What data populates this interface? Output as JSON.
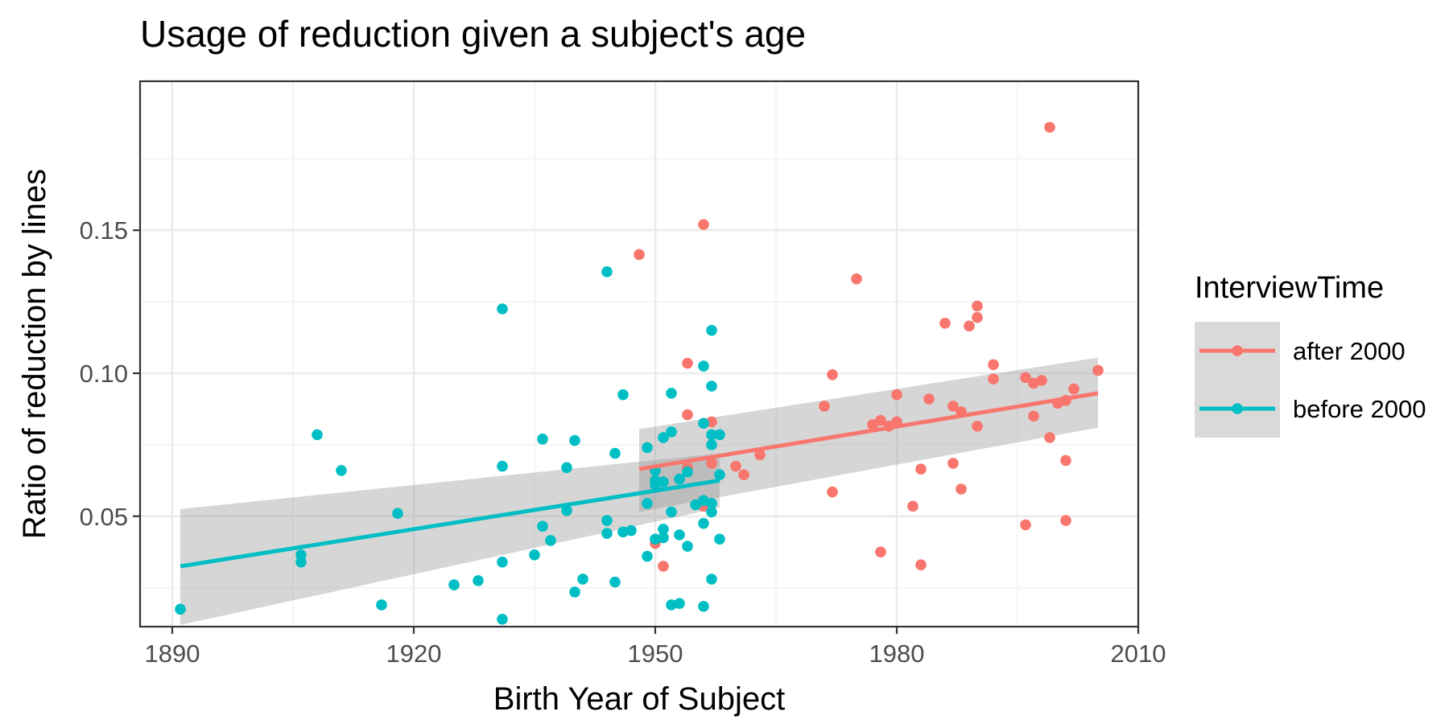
{
  "chart_data": {
    "type": "scatter",
    "title": "Usage of reduction given a subject's age",
    "xlabel": "Birth Year of Subject",
    "ylabel": "Ratio of reduction by lines",
    "xlim": [
      1886,
      2010
    ],
    "ylim": [
      0.0114,
      0.2021
    ],
    "xticks": [
      1890,
      1920,
      1950,
      1980,
      2010
    ],
    "xtick_labels": [
      "1890",
      "1920",
      "1950",
      "1980",
      "2010"
    ],
    "yticks": [
      0.05,
      0.1,
      0.15
    ],
    "ytick_labels": [
      "0.05",
      "0.10",
      "0.15"
    ],
    "grid": true,
    "legend": {
      "title": "InterviewTime",
      "position": "right",
      "entries": [
        "after 2000",
        "before 2000"
      ]
    },
    "series": [
      {
        "name": "after 2000",
        "color": "#F8766D",
        "points": [
          [
            1948,
            0.1415
          ],
          [
            1956,
            0.152
          ],
          [
            1954,
            0.1035
          ],
          [
            1954,
            0.0855
          ],
          [
            1957,
            0.083
          ],
          [
            1954,
            0.067
          ],
          [
            1957,
            0.0685
          ],
          [
            1956,
            0.0535
          ],
          [
            1950,
            0.0405
          ],
          [
            1951,
            0.0325
          ],
          [
            1960,
            0.0675
          ],
          [
            1961,
            0.0645
          ],
          [
            1963,
            0.0715
          ],
          [
            1971,
            0.0885
          ],
          [
            1972,
            0.0995
          ],
          [
            1972,
            0.0585
          ],
          [
            1975,
            0.133
          ],
          [
            1977,
            0.082
          ],
          [
            1978,
            0.0835
          ],
          [
            1978,
            0.0375
          ],
          [
            1979,
            0.0815
          ],
          [
            1980,
            0.0925
          ],
          [
            1980,
            0.083
          ],
          [
            1982,
            0.0535
          ],
          [
            1983,
            0.0665
          ],
          [
            1983,
            0.033
          ],
          [
            1984,
            0.091
          ],
          [
            1986,
            0.1175
          ],
          [
            1987,
            0.0885
          ],
          [
            1987,
            0.0685
          ],
          [
            1988,
            0.0865
          ],
          [
            1988,
            0.0595
          ],
          [
            1989,
            0.1165
          ],
          [
            1990,
            0.1235
          ],
          [
            1990,
            0.1195
          ],
          [
            1990,
            0.0815
          ],
          [
            1992,
            0.103
          ],
          [
            1992,
            0.098
          ],
          [
            1996,
            0.0985
          ],
          [
            1996,
            0.047
          ],
          [
            1997,
            0.0965
          ],
          [
            1997,
            0.085
          ],
          [
            1998,
            0.0975
          ],
          [
            1999,
            0.186
          ],
          [
            1999,
            0.0775
          ],
          [
            2000,
            0.0895
          ],
          [
            2001,
            0.0695
          ],
          [
            2001,
            0.0485
          ],
          [
            2001,
            0.0905
          ],
          [
            2002,
            0.0945
          ],
          [
            2005,
            0.101
          ]
        ],
        "trend": {
          "x": [
            1948,
            2005
          ],
          "y": [
            0.0665,
            0.093
          ],
          "ci_low": [
            0.0515,
            0.081
          ],
          "ci_high": [
            0.0805,
            0.1055
          ]
        }
      },
      {
        "name": "before 2000",
        "color": "#00BFC4",
        "points": [
          [
            1891,
            0.0175
          ],
          [
            1906,
            0.0365
          ],
          [
            1906,
            0.034
          ],
          [
            1908,
            0.0785
          ],
          [
            1911,
            0.066
          ],
          [
            1916,
            0.019
          ],
          [
            1918,
            0.051
          ],
          [
            1925,
            0.026
          ],
          [
            1928,
            0.0275
          ],
          [
            1931,
            0.1225
          ],
          [
            1931,
            0.0675
          ],
          [
            1931,
            0.034
          ],
          [
            1931,
            0.014
          ],
          [
            1935,
            0.0365
          ],
          [
            1936,
            0.077
          ],
          [
            1936,
            0.0465
          ],
          [
            1937,
            0.0415
          ],
          [
            1939,
            0.067
          ],
          [
            1939,
            0.052
          ],
          [
            1940,
            0.0765
          ],
          [
            1940,
            0.0235
          ],
          [
            1941,
            0.028
          ],
          [
            1944,
            0.1355
          ],
          [
            1944,
            0.0485
          ],
          [
            1944,
            0.044
          ],
          [
            1945,
            0.072
          ],
          [
            1945,
            0.027
          ],
          [
            1946,
            0.0925
          ],
          [
            1946,
            0.0445
          ],
          [
            1947,
            0.045
          ],
          [
            1949,
            0.074
          ],
          [
            1949,
            0.0545
          ],
          [
            1949,
            0.036
          ],
          [
            1950,
            0.066
          ],
          [
            1950,
            0.0625
          ],
          [
            1950,
            0.061
          ],
          [
            1950,
            0.042
          ],
          [
            1951,
            0.0775
          ],
          [
            1951,
            0.062
          ],
          [
            1951,
            0.0455
          ],
          [
            1951,
            0.0425
          ],
          [
            1952,
            0.093
          ],
          [
            1952,
            0.0795
          ],
          [
            1952,
            0.0515
          ],
          [
            1952,
            0.019
          ],
          [
            1953,
            0.063
          ],
          [
            1953,
            0.0435
          ],
          [
            1953,
            0.0195
          ],
          [
            1954,
            0.0655
          ],
          [
            1954,
            0.0395
          ],
          [
            1955,
            0.054
          ],
          [
            1956,
            0.1025
          ],
          [
            1956,
            0.0825
          ],
          [
            1956,
            0.0555
          ],
          [
            1956,
            0.0475
          ],
          [
            1956,
            0.0185
          ],
          [
            1957,
            0.115
          ],
          [
            1957,
            0.0955
          ],
          [
            1957,
            0.0785
          ],
          [
            1957,
            0.075
          ],
          [
            1957,
            0.0545
          ],
          [
            1957,
            0.0515
          ],
          [
            1957,
            0.028
          ],
          [
            1958,
            0.0785
          ],
          [
            1958,
            0.0645
          ],
          [
            1958,
            0.042
          ]
        ],
        "trend": {
          "x": [
            1891,
            1958
          ],
          "y": [
            0.0325,
            0.0625
          ],
          "ci_low": [
            0.012,
            0.053
          ],
          "ci_high": [
            0.0525,
            0.072
          ]
        }
      }
    ]
  }
}
